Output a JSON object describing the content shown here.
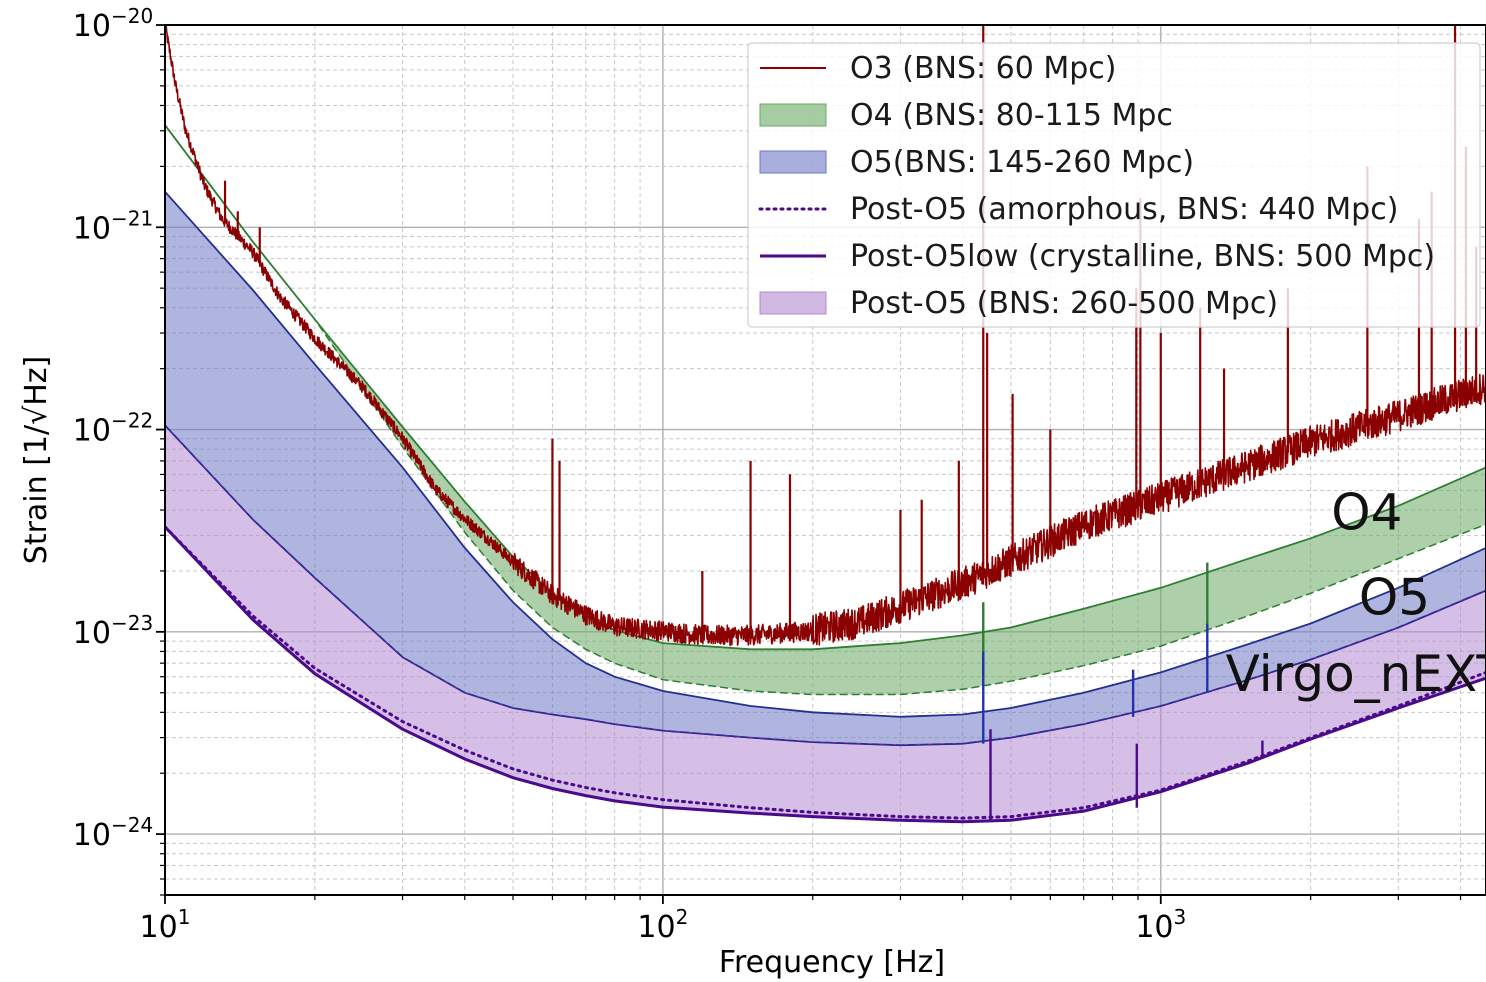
{
  "chart_data": {
    "type": "line",
    "xlabel": "Frequency [Hz]",
    "ylabel": "Strain [1/√Hz]",
    "xscale": "log",
    "yscale": "log",
    "xlim": [
      10,
      4500
    ],
    "ylim": [
      5e-25,
      1e-20
    ],
    "grid": "on (major and minor)",
    "legend_position": "top-right",
    "x_ticks": [
      {
        "base": "10",
        "exp": "1",
        "value": 10
      },
      {
        "base": "10",
        "exp": "2",
        "value": 100
      },
      {
        "base": "10",
        "exp": "3",
        "value": 1000
      }
    ],
    "y_ticks": [
      {
        "base": "10",
        "exp": "−20",
        "value": 1e-20
      },
      {
        "base": "10",
        "exp": "−21",
        "value": 1e-21
      },
      {
        "base": "10",
        "exp": "−22",
        "value": 1e-22
      },
      {
        "base": "10",
        "exp": "−23",
        "value": 1e-23
      },
      {
        "base": "10",
        "exp": "−24",
        "value": 1e-24
      }
    ],
    "legend": [
      {
        "label": "O3 (BNS: 60 Mpc)",
        "kind": "line",
        "color": "#8b0000"
      },
      {
        "label": "O4 (BNS: 80-115 Mpc",
        "kind": "band",
        "color": "#6aaa64"
      },
      {
        "label": "O5(BNS: 145-260 Mpc)",
        "kind": "band",
        "color": "#6f78c4"
      },
      {
        "label": "Post-O5 (amorphous, BNS: 440 Mpc)",
        "kind": "dotted",
        "color": "#4b0a8c"
      },
      {
        "label": "Post-O5low (crystalline, BNS: 500 Mpc)",
        "kind": "line",
        "color": "#4b0a8c"
      },
      {
        "label": "Post-O5 (BNS: 260-500 Mpc)",
        "kind": "band",
        "color": "#b48ad2"
      }
    ],
    "annotations": [
      {
        "text": "O4",
        "x": 2200,
        "y": 3.2e-23
      },
      {
        "text": "O5",
        "x": 2500,
        "y": 1.22e-23
      },
      {
        "text": "Virgo_nEXT",
        "x": 1350,
        "y": 5.1e-24
      }
    ],
    "series": [
      {
        "name": "O3 (BNS: 60 Mpc)",
        "style": "line",
        "color": "#8b0000",
        "x": [
          10,
          10.5,
          11,
          12,
          13,
          14,
          15,
          17,
          20,
          25,
          30,
          35,
          40,
          45,
          50,
          60,
          70,
          80,
          100,
          120,
          150,
          200,
          250,
          300,
          400,
          500,
          700,
          1000,
          1500,
          2000,
          3000,
          4500
        ],
        "y": [
          1e-20,
          5e-21,
          3e-21,
          1.6e-21,
          1.1e-21,
          9e-22,
          7.5e-22,
          4.5e-22,
          2.8e-22,
          1.6e-22,
          9e-23,
          5e-23,
          3.6e-23,
          2.8e-23,
          2.2e-23,
          1.5e-23,
          1.2e-23,
          1.05e-23,
          1e-23,
          9.5e-24,
          9.5e-24,
          1e-23,
          1.1e-23,
          1.3e-23,
          1.7e-23,
          2.2e-23,
          3.3e-23,
          4.5e-23,
          6.5e-23,
          8.5e-23,
          1.15e-22,
          1.6e-22
        ]
      },
      {
        "name": "O4 (BNS: 80-115 Mpc",
        "style": "band",
        "color": "#6aaa64",
        "x": [
          10,
          15,
          20,
          30,
          40,
          50,
          60,
          70,
          80,
          100,
          150,
          200,
          300,
          400,
          500,
          700,
          1000,
          1500,
          2000,
          3000,
          4500
        ],
        "y_upper": [
          3.2e-21,
          8.5e-22,
          3.5e-22,
          1.03e-22,
          4.4e-23,
          2.35e-23,
          1.55e-23,
          1.2e-23,
          1.02e-23,
          8.8e-24,
          8.2e-24,
          8.2e-24,
          8.8e-24,
          9.6e-24,
          1.05e-23,
          1.3e-23,
          1.65e-23,
          2.3e-23,
          2.9e-23,
          4.2e-23,
          6.5e-23
        ],
        "y_lower": [
          3.2e-21,
          8.5e-22,
          3.5e-22,
          8.2e-23,
          3.1e-23,
          1.6e-23,
          1.05e-23,
          8.2e-24,
          7e-24,
          5.8e-24,
          5.1e-24,
          4.9e-24,
          4.9e-24,
          5.2e-24,
          5.7e-24,
          6.8e-24,
          8.5e-24,
          1.2e-23,
          1.55e-23,
          2.3e-23,
          3.4e-23
        ]
      },
      {
        "name": "O5(BNS: 145-260 Mpc)",
        "style": "band",
        "color": "#6f78c4",
        "x": [
          10,
          15,
          20,
          30,
          40,
          50,
          60,
          70,
          80,
          100,
          150,
          200,
          300,
          400,
          500,
          700,
          1000,
          1500,
          2000,
          3000,
          4500
        ],
        "y_upper": [
          1.5e-21,
          4.9e-22,
          2.1e-22,
          6.5e-23,
          2.6e-23,
          1.4e-23,
          9.2e-24,
          7e-24,
          6e-24,
          5.1e-24,
          4.3e-24,
          4e-24,
          3.8e-24,
          3.9e-24,
          4.2e-24,
          5e-24,
          6.3e-24,
          8.7e-24,
          1.1e-23,
          1.65e-23,
          2.6e-23
        ],
        "y_lower": [
          1.05e-22,
          3.6e-23,
          1.85e-23,
          7.5e-24,
          5e-24,
          4.2e-24,
          3.9e-24,
          3.7e-24,
          3.5e-24,
          3.25e-24,
          3e-24,
          2.85e-24,
          2.75e-24,
          2.8e-24,
          3e-24,
          3.5e-24,
          4.3e-24,
          5.8e-24,
          7.3e-24,
          1.05e-23,
          1.6e-23
        ]
      },
      {
        "name": "Post-O5 (amorphous, BNS: 440 Mpc)",
        "style": "dotted",
        "color": "#4b0a8c",
        "x": [
          10,
          15,
          20,
          30,
          40,
          50,
          60,
          70,
          80,
          100,
          150,
          200,
          300,
          400,
          500,
          700,
          1000,
          1500,
          2000,
          3000,
          4500
        ],
        "y": [
          3.3e-23,
          1.2e-23,
          6.6e-24,
          3.6e-24,
          2.6e-24,
          2.1e-24,
          1.85e-24,
          1.7e-24,
          1.6e-24,
          1.48e-24,
          1.35e-24,
          1.28e-24,
          1.22e-24,
          1.2e-24,
          1.22e-24,
          1.35e-24,
          1.65e-24,
          2.3e-24,
          3e-24,
          4.3e-24,
          6.3e-24
        ]
      },
      {
        "name": "Post-O5low (crystalline, BNS: 500 Mpc)",
        "style": "line",
        "color": "#4b0a8c",
        "x": [
          10,
          15,
          20,
          30,
          40,
          50,
          60,
          70,
          80,
          100,
          150,
          200,
          300,
          400,
          500,
          700,
          1000,
          1500,
          2000,
          3000,
          4500
        ],
        "y": [
          3.3e-23,
          1.15e-23,
          6.2e-24,
          3.3e-24,
          2.35e-24,
          1.9e-24,
          1.68e-24,
          1.55e-24,
          1.46e-24,
          1.36e-24,
          1.27e-24,
          1.22e-24,
          1.17e-24,
          1.15e-24,
          1.17e-24,
          1.3e-24,
          1.62e-24,
          2.25e-24,
          2.95e-24,
          4.2e-24,
          5.9e-24
        ]
      },
      {
        "name": "Post-O5 (BNS: 260-500 Mpc)",
        "style": "band",
        "color": "#b48ad2",
        "x": [
          10,
          15,
          20,
          30,
          40,
          50,
          60,
          70,
          80,
          100,
          150,
          200,
          300,
          400,
          500,
          700,
          1000,
          1500,
          2000,
          3000,
          4500
        ],
        "y_upper": [
          1.05e-22,
          3.6e-23,
          1.85e-23,
          7.5e-24,
          5e-24,
          4.2e-24,
          3.9e-24,
          3.7e-24,
          3.5e-24,
          3.25e-24,
          3e-24,
          2.85e-24,
          2.75e-24,
          2.8e-24,
          3e-24,
          3.5e-24,
          4.3e-24,
          5.8e-24,
          7.3e-24,
          1.05e-23,
          1.6e-23
        ],
        "y_lower": [
          3.3e-23,
          1.15e-23,
          6.2e-24,
          3.3e-24,
          2.35e-24,
          1.9e-24,
          1.68e-24,
          1.55e-24,
          1.46e-24,
          1.36e-24,
          1.27e-24,
          1.22e-24,
          1.17e-24,
          1.15e-24,
          1.17e-24,
          1.3e-24,
          1.62e-24,
          2.25e-24,
          2.95e-24,
          4.2e-24,
          5.9e-24
        ]
      }
    ],
    "o3_spectral_lines": [
      {
        "f": 13.2,
        "y": 1.7e-21
      },
      {
        "f": 14,
        "y": 1.2e-21
      },
      {
        "f": 15.5,
        "y": 1e-21
      },
      {
        "f": 60,
        "y": 9e-23
      },
      {
        "f": 62,
        "y": 7e-23
      },
      {
        "f": 120,
        "y": 2e-23
      },
      {
        "f": 150,
        "y": 7e-23
      },
      {
        "f": 180,
        "y": 6e-23
      },
      {
        "f": 300,
        "y": 4e-23
      },
      {
        "f": 331,
        "y": 4.5e-23
      },
      {
        "f": 393,
        "y": 7e-23
      },
      {
        "f": 440,
        "y": 1.3e-20
      },
      {
        "f": 448,
        "y": 3e-22
      },
      {
        "f": 504,
        "y": 1.5e-22
      },
      {
        "f": 600,
        "y": 1e-22
      },
      {
        "f": 893,
        "y": 5e-22
      },
      {
        "f": 910,
        "y": 1.4e-21
      },
      {
        "f": 1000,
        "y": 3e-22
      },
      {
        "f": 1200,
        "y": 4e-22
      },
      {
        "f": 1340,
        "y": 2e-22
      },
      {
        "f": 1800,
        "y": 5e-22
      },
      {
        "f": 2600,
        "y": 2e-21
      },
      {
        "f": 3300,
        "y": 1.1e-21
      },
      {
        "f": 3500,
        "y": 1.5e-21
      },
      {
        "f": 3900,
        "y": 1e-20
      },
      {
        "f": 4100,
        "y": 2.5e-21
      },
      {
        "f": 4300,
        "y": 8e-22
      }
    ],
    "band_spectral_lines": [
      {
        "color": "#2e7d32",
        "f": 440,
        "y_top": 1.4e-23,
        "y_bot": 6e-24
      },
      {
        "color": "#2e7d32",
        "f": 1240,
        "y_top": 2.2e-23,
        "y_bot": 1.1e-23
      },
      {
        "color": "#2233aa",
        "f": 440,
        "y_top": 8e-24,
        "y_bot": 2.8e-24
      },
      {
        "color": "#2233aa",
        "f": 880,
        "y_top": 6.5e-24,
        "y_bot": 3.8e-24
      },
      {
        "color": "#2233aa",
        "f": 1240,
        "y_top": 1.1e-23,
        "y_bot": 5e-24
      },
      {
        "color": "#4b0a8c",
        "f": 455,
        "y_top": 3.3e-24,
        "y_bot": 1.17e-24
      },
      {
        "color": "#4b0a8c",
        "f": 895,
        "y_top": 2.8e-24,
        "y_bot": 1.35e-24
      },
      {
        "color": "#4b0a8c",
        "f": 1600,
        "y_top": 2.9e-24,
        "y_bot": 2.45e-24
      }
    ]
  }
}
